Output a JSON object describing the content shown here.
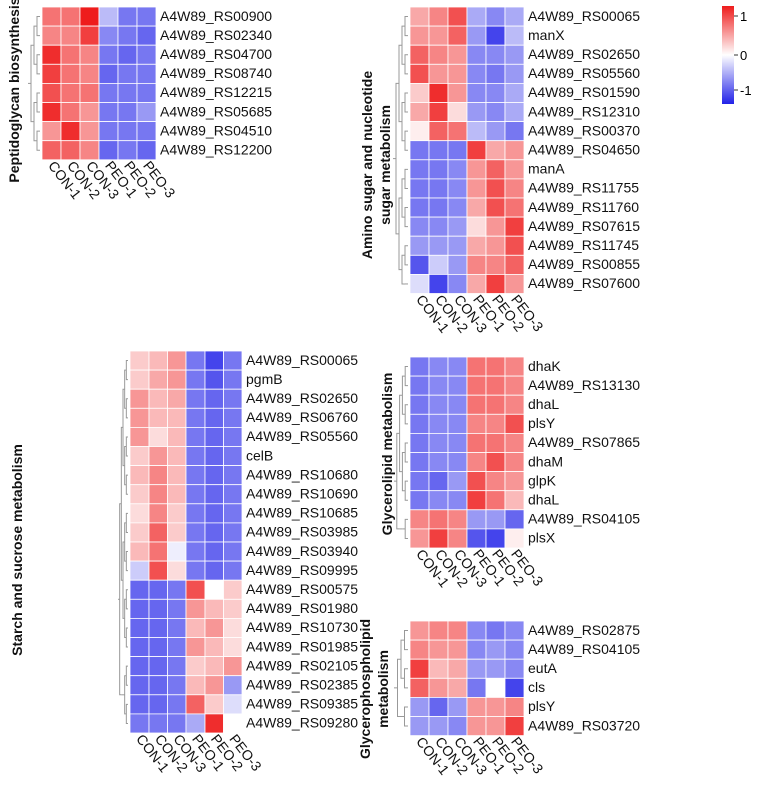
{
  "legend": {
    "ticks": [
      "1",
      "0",
      "-1"
    ],
    "min": -1.3,
    "max": 1.3
  },
  "colors": {
    "low": "#2222e8",
    "mid": "#ffffff",
    "high": "#ee1c1c"
  },
  "chart_data": [
    {
      "id": "p1",
      "type": "heatmap",
      "title_lines": [
        "Peptidoglycan biosynthesis"
      ],
      "columns": [
        "CON-1",
        "CON-2",
        "CON-3",
        "PEO-1",
        "PEO-2",
        "PEO-3"
      ],
      "rows": [
        "A4W89_RS00900",
        "A4W89_RS02340",
        "A4W89_RS04700",
        "A4W89_RS08740",
        "A4W89_RS12215",
        "A4W89_RS05685",
        "A4W89_RS04510",
        "A4W89_RS12200"
      ],
      "values": [
        [
          0.8,
          0.8,
          1.3,
          -0.4,
          -0.8,
          -0.8
        ],
        [
          0.7,
          0.7,
          1.1,
          -0.7,
          -0.8,
          -0.9
        ],
        [
          1.2,
          0.8,
          0.7,
          -0.8,
          -0.9,
          -0.8
        ],
        [
          1.1,
          0.8,
          0.7,
          -0.9,
          -0.8,
          -0.8
        ],
        [
          1.0,
          0.8,
          0.8,
          -0.8,
          -0.8,
          -0.8
        ],
        [
          1.2,
          0.8,
          0.6,
          -0.8,
          -0.8,
          -0.6
        ],
        [
          0.6,
          1.2,
          0.6,
          -0.8,
          -0.8,
          -0.8
        ],
        [
          0.9,
          0.9,
          0.7,
          -0.9,
          -0.8,
          -0.9
        ]
      ]
    },
    {
      "id": "p2",
      "type": "heatmap",
      "title_lines": [
        "Amino sugar and nucleotide",
        "sugar metabolism"
      ],
      "columns": [
        "CON-1",
        "CON-2",
        "CON-3",
        "PEO-1",
        "PEO-2",
        "PEO-3"
      ],
      "rows": [
        "A4W89_RS00065",
        "manX",
        "A4W89_RS02650",
        "A4W89_RS05560",
        "A4W89_RS01590",
        "A4W89_RS12310",
        "A4W89_RS00370",
        "A4W89_RS04650",
        "manA",
        "A4W89_RS11755",
        "A4W89_RS11760",
        "A4W89_RS07615",
        "A4W89_RS11745",
        "A4W89_RS00855",
        "A4W89_RS07600"
      ],
      "values": [
        [
          0.5,
          0.7,
          1.0,
          -0.5,
          -0.7,
          -0.5
        ],
        [
          0.6,
          0.6,
          0.9,
          -0.6,
          -1.1,
          -0.4
        ],
        [
          0.9,
          0.7,
          0.6,
          -0.7,
          -0.7,
          -0.6
        ],
        [
          1.0,
          0.6,
          0.6,
          -0.7,
          -0.8,
          -0.6
        ],
        [
          0.3,
          1.2,
          0.6,
          -0.7,
          -0.7,
          -0.5
        ],
        [
          0.5,
          1.1,
          0.2,
          -0.6,
          -0.7,
          -0.5
        ],
        [
          0.1,
          0.9,
          0.8,
          -0.4,
          -0.6,
          -0.8
        ],
        [
          -0.8,
          -0.8,
          -0.8,
          1.1,
          0.5,
          0.6
        ],
        [
          -0.8,
          -0.8,
          -0.7,
          0.6,
          0.9,
          0.6
        ],
        [
          -0.8,
          -0.8,
          -0.7,
          0.6,
          1.0,
          0.7
        ],
        [
          -0.8,
          -0.8,
          -0.7,
          0.5,
          1.0,
          0.8
        ],
        [
          -0.7,
          -0.7,
          -0.6,
          0.2,
          0.6,
          1.1
        ],
        [
          -0.6,
          -0.6,
          -0.6,
          0.5,
          0.6,
          1.0
        ],
        [
          -1.0,
          -0.3,
          -0.6,
          0.7,
          0.7,
          0.9
        ],
        [
          -0.2,
          -1.1,
          -0.7,
          0.5,
          1.1,
          0.6
        ]
      ]
    },
    {
      "id": "p3",
      "type": "heatmap",
      "title_lines": [
        "Starch and sucrose metabolism"
      ],
      "columns": [
        "CON-1",
        "CON-2",
        "CON-3",
        "PEO-1",
        "PEO-2",
        "PEO-3"
      ],
      "rows": [
        "A4W89_RS00065",
        "pgmB",
        "A4W89_RS02650",
        "A4W89_RS06760",
        "A4W89_RS05560",
        "celB",
        "A4W89_RS10680",
        "A4W89_RS10690",
        "A4W89_RS10685",
        "A4W89_RS03985",
        "A4W89_RS03940",
        "A4W89_RS09995",
        "A4W89_RS00575",
        "A4W89_RS01980",
        "A4W89_RS10730",
        "A4W89_RS01985",
        "A4W89_RS02105",
        "A4W89_RS02385",
        "A4W89_RS09385",
        "A4W89_RS09280"
      ],
      "values": [
        [
          0.3,
          0.4,
          0.6,
          -0.8,
          -1.1,
          -0.8
        ],
        [
          0.3,
          0.5,
          0.6,
          -0.8,
          -1.0,
          -0.8
        ],
        [
          0.6,
          0.4,
          0.5,
          -0.8,
          -0.9,
          -0.8
        ],
        [
          0.6,
          0.4,
          0.4,
          -0.8,
          -0.9,
          -0.8
        ],
        [
          0.6,
          0.2,
          0.4,
          -0.8,
          -0.9,
          -0.8
        ],
        [
          0.3,
          0.6,
          0.4,
          -0.8,
          -0.9,
          -0.8
        ],
        [
          0.4,
          0.7,
          0.4,
          -0.8,
          -0.9,
          -0.8
        ],
        [
          0.3,
          0.7,
          0.4,
          -0.8,
          -0.9,
          -0.8
        ],
        [
          0.2,
          0.7,
          0.3,
          -0.8,
          -0.9,
          -0.8
        ],
        [
          0.3,
          0.9,
          0.3,
          -0.8,
          -0.9,
          -0.8
        ],
        [
          0.4,
          0.8,
          -0.1,
          -0.8,
          -0.9,
          -0.8
        ],
        [
          -0.3,
          1.0,
          0.2,
          -0.8,
          -0.9,
          -0.8
        ],
        [
          -0.9,
          -0.9,
          -0.8,
          1.0,
          0.0,
          0.3
        ],
        [
          -0.9,
          -0.9,
          -0.8,
          0.6,
          0.4,
          0.3
        ],
        [
          -0.9,
          -0.9,
          -0.8,
          0.4,
          0.6,
          0.2
        ],
        [
          -0.9,
          -0.9,
          -0.8,
          0.6,
          0.4,
          0.2
        ],
        [
          -0.9,
          -0.9,
          -0.8,
          0.3,
          0.4,
          0.6
        ],
        [
          -0.9,
          -0.9,
          -0.8,
          0.4,
          0.6,
          -0.6
        ],
        [
          -0.9,
          -0.9,
          -0.8,
          0.9,
          0.3,
          -0.2
        ],
        [
          -0.8,
          -0.8,
          -0.8,
          -0.5,
          1.2,
          0.0
        ]
      ]
    },
    {
      "id": "p4",
      "type": "heatmap",
      "title_lines": [
        "Glycerolipid metabolism"
      ],
      "columns": [
        "CON-1",
        "CON-2",
        "CON-3",
        "PEO-1",
        "PEO-2",
        "PEO-3"
      ],
      "rows": [
        "dhaK",
        "A4W89_RS13130",
        "dhaL",
        "plsY",
        "A4W89_RS07865",
        "dhaM",
        "glpK",
        "dhaL",
        "A4W89_RS04105",
        "plsX"
      ],
      "values": [
        [
          -0.8,
          -0.7,
          -0.7,
          0.8,
          0.8,
          0.7
        ],
        [
          -0.8,
          -0.7,
          -0.7,
          0.8,
          0.8,
          0.7
        ],
        [
          -0.8,
          -0.7,
          -0.7,
          0.8,
          0.8,
          0.7
        ],
        [
          -0.8,
          -0.7,
          -0.7,
          0.7,
          0.7,
          1.0
        ],
        [
          -0.8,
          -0.7,
          -0.7,
          0.8,
          0.8,
          0.7
        ],
        [
          -0.8,
          -0.7,
          -0.7,
          0.7,
          1.0,
          0.7
        ],
        [
          -0.8,
          -0.9,
          -0.6,
          1.0,
          0.7,
          0.6
        ],
        [
          -0.8,
          -0.7,
          -0.7,
          1.1,
          0.8,
          0.4
        ],
        [
          0.7,
          0.8,
          0.7,
          -0.6,
          -0.6,
          -0.9
        ],
        [
          0.6,
          1.1,
          0.7,
          -1.0,
          -1.1,
          0.1
        ]
      ]
    },
    {
      "id": "p5",
      "type": "heatmap",
      "title_lines": [
        "Glycerophospholipid",
        "metabolism"
      ],
      "columns": [
        "CON-1",
        "CON-2",
        "CON-3",
        "PEO-1",
        "PEO-2",
        "PEO-3"
      ],
      "rows": [
        "A4W89_RS02875",
        "A4W89_RS04105",
        "eutA",
        "cls",
        "plsY",
        "A4W89_RS03720"
      ],
      "values": [
        [
          0.6,
          0.7,
          0.7,
          -0.7,
          -0.8,
          -0.7
        ],
        [
          0.7,
          0.6,
          0.6,
          -0.7,
          -0.6,
          -0.7
        ],
        [
          1.1,
          0.4,
          0.5,
          -0.6,
          -0.6,
          -0.7
        ],
        [
          0.9,
          0.6,
          0.5,
          -0.8,
          0.0,
          -1.1
        ],
        [
          -0.6,
          -0.9,
          -0.6,
          0.6,
          0.6,
          0.7
        ],
        [
          -0.6,
          -0.6,
          -0.7,
          0.6,
          0.6,
          1.1
        ]
      ]
    }
  ]
}
